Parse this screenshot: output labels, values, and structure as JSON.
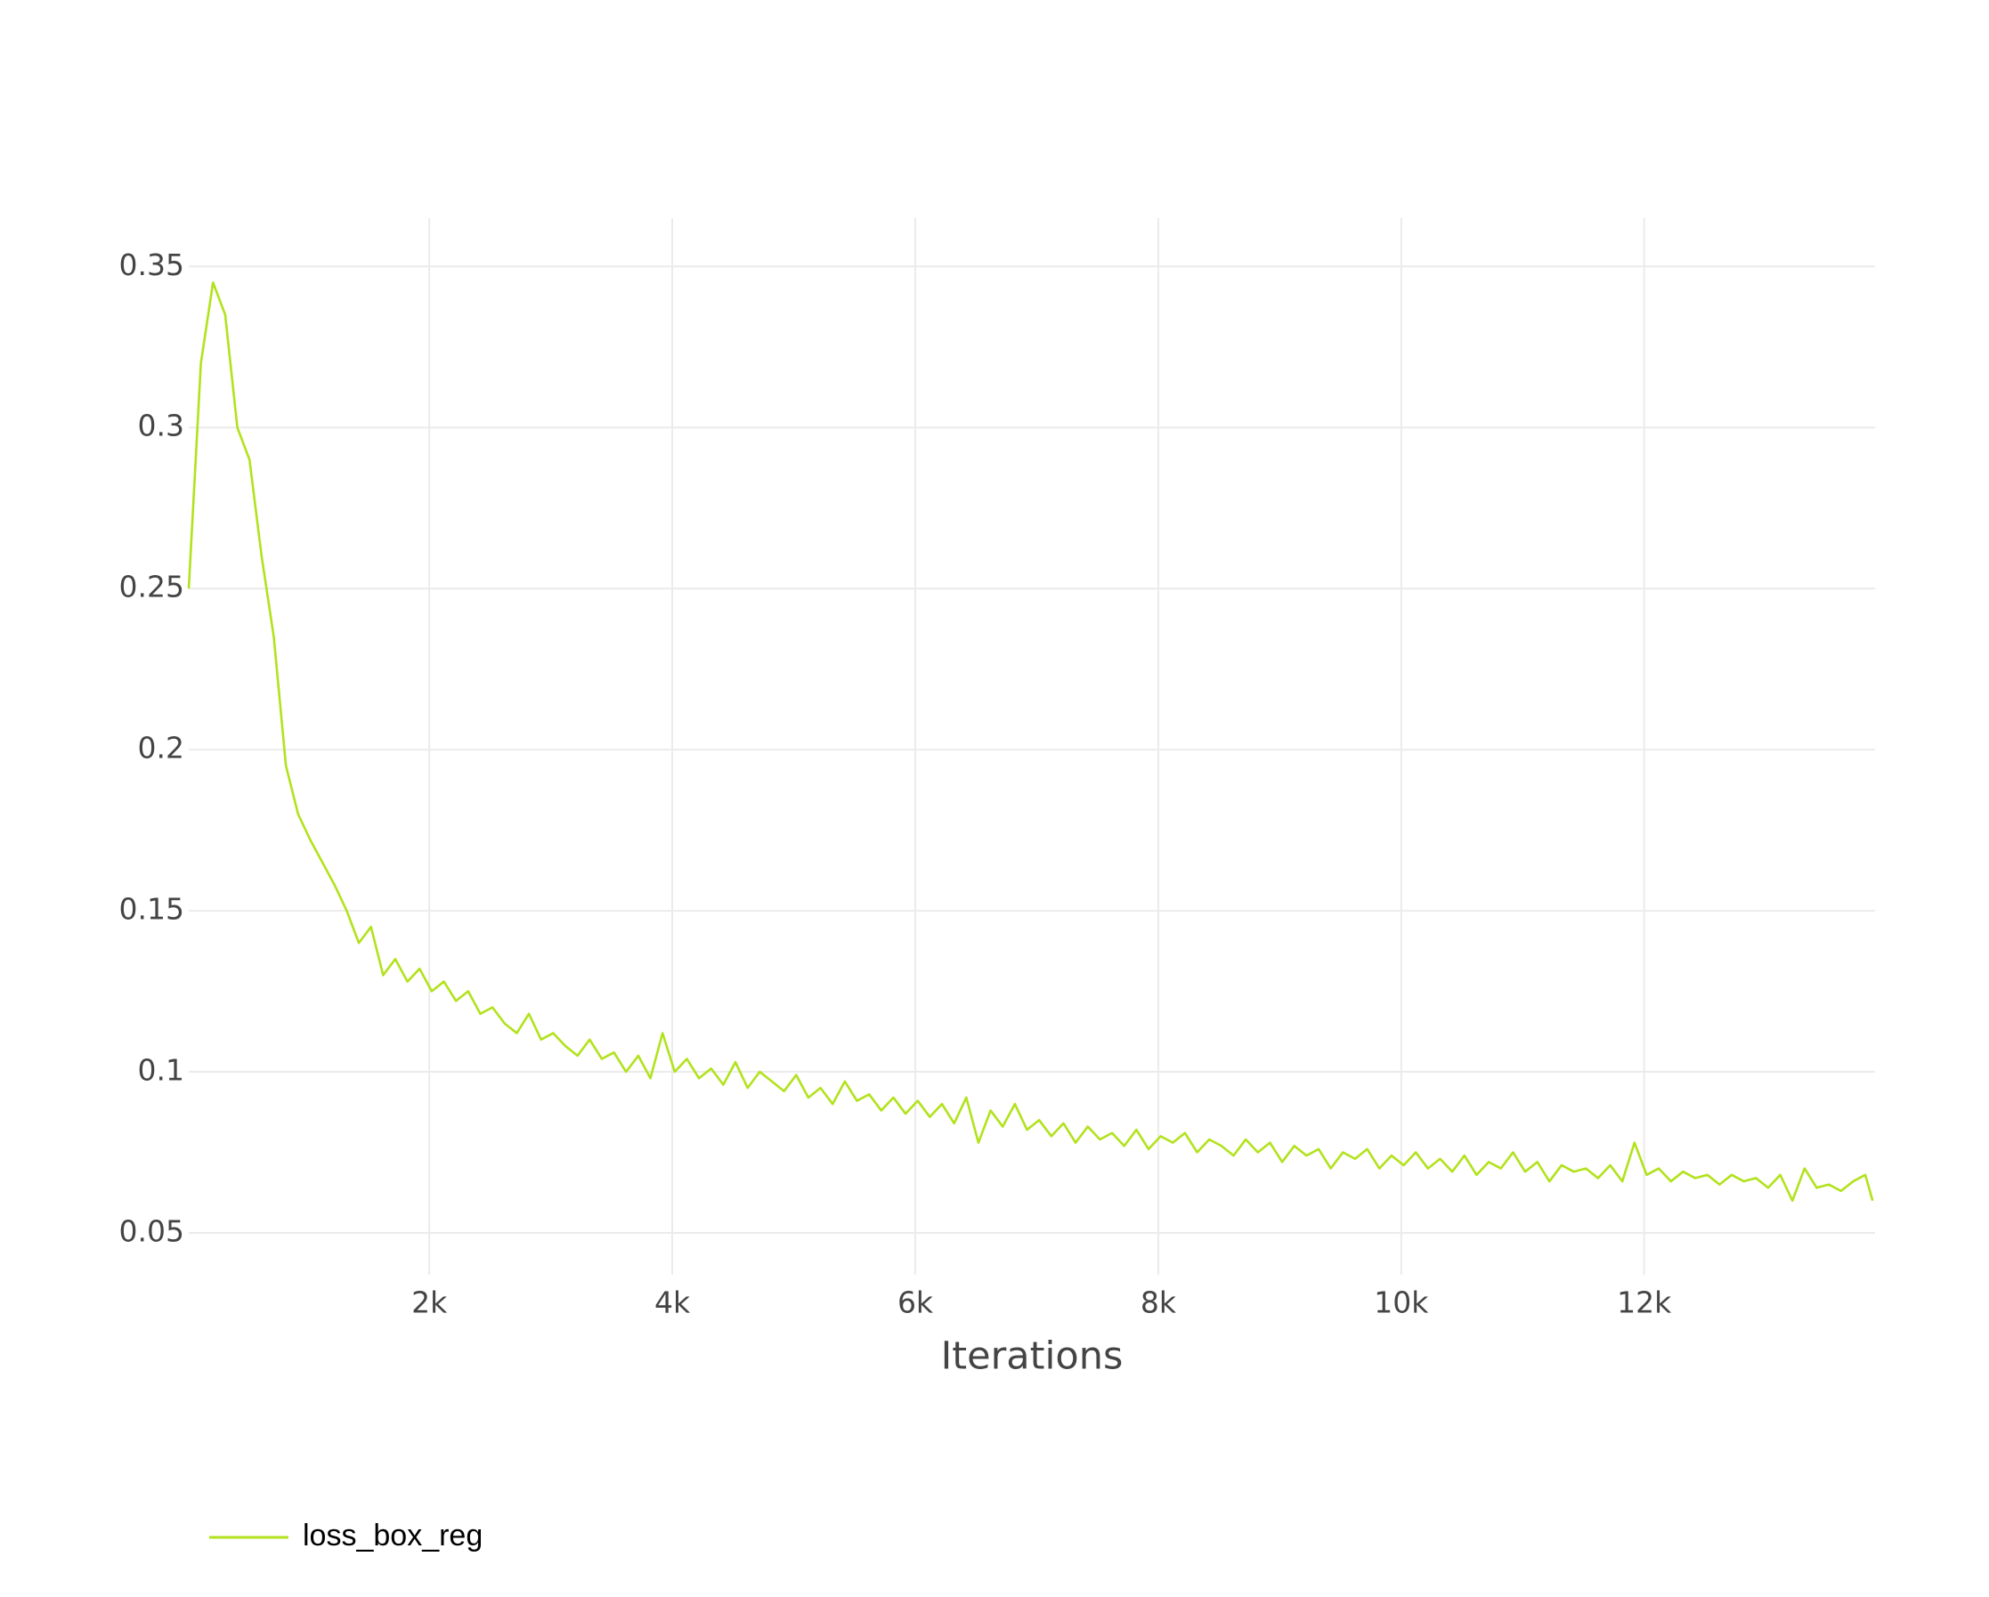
{
  "chart_data": {
    "type": "line",
    "x_label": "Iterations",
    "xlim": [
      20,
      13900
    ],
    "ylim": [
      0.037,
      0.365
    ],
    "xticks": [
      {
        "value": 2000,
        "label": "2k"
      },
      {
        "value": 4000,
        "label": "4k"
      },
      {
        "value": 6000,
        "label": "6k"
      },
      {
        "value": 8000,
        "label": "8k"
      },
      {
        "value": 10000,
        "label": "10k"
      },
      {
        "value": 12000,
        "label": "12k"
      }
    ],
    "yticks": [
      0.05,
      0.1,
      0.15,
      0.2,
      0.25,
      0.3,
      0.35
    ],
    "grid": true,
    "legend": "bottom-left",
    "x": [
      20,
      120,
      220,
      320,
      420,
      520,
      620,
      720,
      820,
      920,
      1020,
      1120,
      1220,
      1320,
      1420,
      1520,
      1620,
      1720,
      1820,
      1920,
      2020,
      2120,
      2220,
      2320,
      2420,
      2520,
      2620,
      2720,
      2820,
      2920,
      3020,
      3120,
      3220,
      3320,
      3420,
      3520,
      3620,
      3720,
      3820,
      3920,
      4020,
      4120,
      4220,
      4320,
      4420,
      4520,
      4620,
      4720,
      4820,
      4920,
      5020,
      5120,
      5220,
      5320,
      5420,
      5520,
      5620,
      5720,
      5820,
      5920,
      6020,
      6120,
      6220,
      6320,
      6420,
      6520,
      6620,
      6720,
      6820,
      6920,
      7020,
      7120,
      7220,
      7320,
      7420,
      7520,
      7620,
      7720,
      7820,
      7920,
      8020,
      8120,
      8220,
      8320,
      8420,
      8520,
      8620,
      8720,
      8820,
      8920,
      9020,
      9120,
      9220,
      9320,
      9420,
      9520,
      9620,
      9720,
      9820,
      9920,
      10020,
      10120,
      10220,
      10320,
      10420,
      10520,
      10620,
      10720,
      10820,
      10920,
      11020,
      11120,
      11220,
      11320,
      11420,
      11520,
      11620,
      11720,
      11820,
      11920,
      12020,
      12120,
      12220,
      12320,
      12420,
      12520,
      12620,
      12720,
      12820,
      12920,
      13020,
      13120,
      13220,
      13320,
      13420,
      13520,
      13620,
      13720,
      13820,
      13880
    ],
    "series": [
      {
        "name": "loss_box_reg",
        "color": "#b2e21c",
        "values": [
          0.25,
          0.32,
          0.345,
          0.335,
          0.3,
          0.29,
          0.26,
          0.235,
          0.195,
          0.18,
          0.172,
          0.165,
          0.158,
          0.15,
          0.14,
          0.145,
          0.13,
          0.135,
          0.128,
          0.132,
          0.125,
          0.128,
          0.122,
          0.125,
          0.118,
          0.12,
          0.115,
          0.112,
          0.118,
          0.11,
          0.112,
          0.108,
          0.105,
          0.11,
          0.104,
          0.106,
          0.1,
          0.105,
          0.098,
          0.112,
          0.1,
          0.104,
          0.098,
          0.101,
          0.096,
          0.103,
          0.095,
          0.1,
          0.097,
          0.094,
          0.099,
          0.092,
          0.095,
          0.09,
          0.097,
          0.091,
          0.093,
          0.088,
          0.092,
          0.087,
          0.091,
          0.086,
          0.09,
          0.084,
          0.092,
          0.078,
          0.088,
          0.083,
          0.09,
          0.082,
          0.085,
          0.08,
          0.084,
          0.078,
          0.083,
          0.079,
          0.081,
          0.077,
          0.082,
          0.076,
          0.08,
          0.078,
          0.081,
          0.075,
          0.079,
          0.077,
          0.074,
          0.079,
          0.075,
          0.078,
          0.072,
          0.077,
          0.074,
          0.076,
          0.07,
          0.075,
          0.073,
          0.076,
          0.07,
          0.074,
          0.071,
          0.075,
          0.07,
          0.073,
          0.069,
          0.074,
          0.068,
          0.072,
          0.07,
          0.075,
          0.069,
          0.072,
          0.066,
          0.071,
          0.069,
          0.07,
          0.067,
          0.071,
          0.066,
          0.078,
          0.068,
          0.07,
          0.066,
          0.069,
          0.067,
          0.068,
          0.065,
          0.068,
          0.066,
          0.067,
          0.064,
          0.068,
          0.06,
          0.07,
          0.064,
          0.065,
          0.063,
          0.066,
          0.068,
          0.06
        ]
      }
    ]
  }
}
